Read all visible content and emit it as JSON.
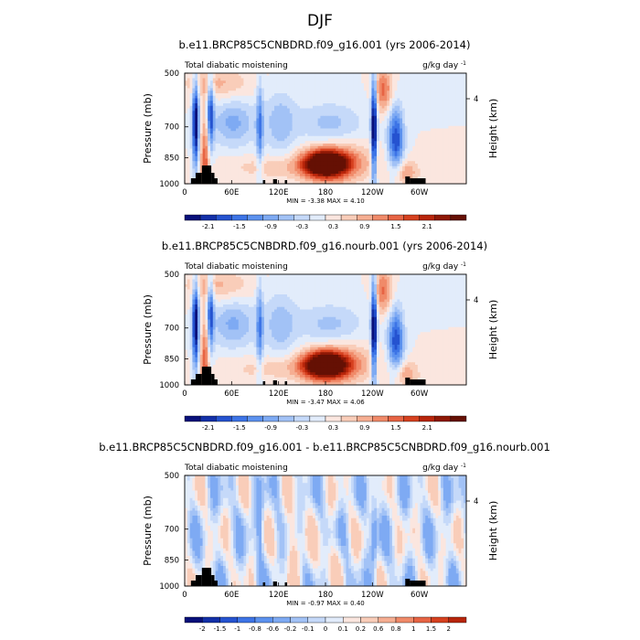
{
  "figure_title": "DJF",
  "chart_data": [
    {
      "type": "heatmap",
      "title": "b.e11.BRCP85C5CNBDRD.f09_g16.001 (yrs 2006-2014)",
      "left_label": "Total diabatic moistening",
      "units": "g/kg day",
      "units_exp": "-1",
      "ylabel": "Pressure (mb)",
      "y2label": "Height (km)",
      "y_ticks": [
        "500",
        "700",
        "850",
        "1000"
      ],
      "y_tick_values": [
        500,
        700,
        850,
        1000
      ],
      "y2_ticks": [
        "4"
      ],
      "x_ticks": [
        "0",
        "60E",
        "120E",
        "180",
        "120W",
        "60W"
      ],
      "x_tick_values": [
        0,
        60,
        120,
        180,
        240,
        300
      ],
      "min_text": "MIN =  -3.38  MAX =   4.10",
      "min": -3.38,
      "max": 4.1,
      "colorbar_labels": [
        "-2.1",
        "-1.5",
        "-0.9",
        "-0.3",
        "0.3",
        "0.9",
        "1.5",
        "2.1"
      ],
      "colors": [
        "#08107a",
        "#1330a8",
        "#2553d0",
        "#3d74e6",
        "#5c92ef",
        "#7eaaf3",
        "#a2c2f6",
        "#c5d9f9",
        "#e2ecfb",
        "#fbe6df",
        "#f9cdb9",
        "#f6ae92",
        "#f08a69",
        "#e76444",
        "#d6411f",
        "#b8250b",
        "#8e1805",
        "#651004"
      ]
    },
    {
      "type": "heatmap",
      "title": "b.e11.BRCP85C5CNBDRD.f09_g16.nourb.001 (yrs 2006-2014)",
      "left_label": "Total diabatic moistening",
      "units": "g/kg day",
      "units_exp": "-1",
      "ylabel": "Pressure (mb)",
      "y2label": "Height (km)",
      "y_ticks": [
        "500",
        "700",
        "850",
        "1000"
      ],
      "y_tick_values": [
        500,
        700,
        850,
        1000
      ],
      "y2_ticks": [
        "4"
      ],
      "x_ticks": [
        "0",
        "60E",
        "120E",
        "180",
        "120W",
        "60W"
      ],
      "x_tick_values": [
        0,
        60,
        120,
        180,
        240,
        300
      ],
      "min_text": "MIN =  -3.47  MAX =   4.06",
      "min": -3.47,
      "max": 4.06,
      "colorbar_labels": [
        "-2.1",
        "-1.5",
        "-0.9",
        "-0.3",
        "0.3",
        "0.9",
        "1.5",
        "2.1"
      ],
      "colors": [
        "#08107a",
        "#1330a8",
        "#2553d0",
        "#3d74e6",
        "#5c92ef",
        "#7eaaf3",
        "#a2c2f6",
        "#c5d9f9",
        "#e2ecfb",
        "#fbe6df",
        "#f9cdb9",
        "#f6ae92",
        "#f08a69",
        "#e76444",
        "#d6411f",
        "#b8250b",
        "#8e1805",
        "#651004"
      ]
    },
    {
      "type": "heatmap",
      "title": "b.e11.BRCP85C5CNBDRD.f09_g16.001 - b.e11.BRCP85C5CNBDRD.f09_g16.nourb.001",
      "left_label": "Total diabatic moistening",
      "units": "g/kg day",
      "units_exp": "-1",
      "ylabel": "Pressure (mb)",
      "y2label": "Height (km)",
      "y_ticks": [
        "500",
        "700",
        "850",
        "1000"
      ],
      "y_tick_values": [
        500,
        700,
        850,
        1000
      ],
      "y2_ticks": [
        "4"
      ],
      "x_ticks": [
        "0",
        "60E",
        "120E",
        "180",
        "120W",
        "60W"
      ],
      "x_tick_values": [
        0,
        60,
        120,
        180,
        240,
        300
      ],
      "min_text": "MIN =  -0.97  MAX =   0.40",
      "min": -0.97,
      "max": 0.4,
      "colorbar_labels": [
        "-2",
        "-1.5",
        "-1",
        "-0.8",
        "-0.6",
        "-0.2",
        "-0.1",
        "0",
        "0.1",
        "0.2",
        "0.6",
        "0.8",
        "1",
        "1.5",
        "2"
      ],
      "colors": [
        "#08107a",
        "#1330a8",
        "#2553d0",
        "#3d74e6",
        "#5c92ef",
        "#7eaaf3",
        "#a2c2f6",
        "#c5d9f9",
        "#e2ecfb",
        "#fbe6df",
        "#f9cdb9",
        "#f6ae92",
        "#f08a69",
        "#e76444",
        "#d6411f",
        "#b8250b"
      ]
    }
  ]
}
